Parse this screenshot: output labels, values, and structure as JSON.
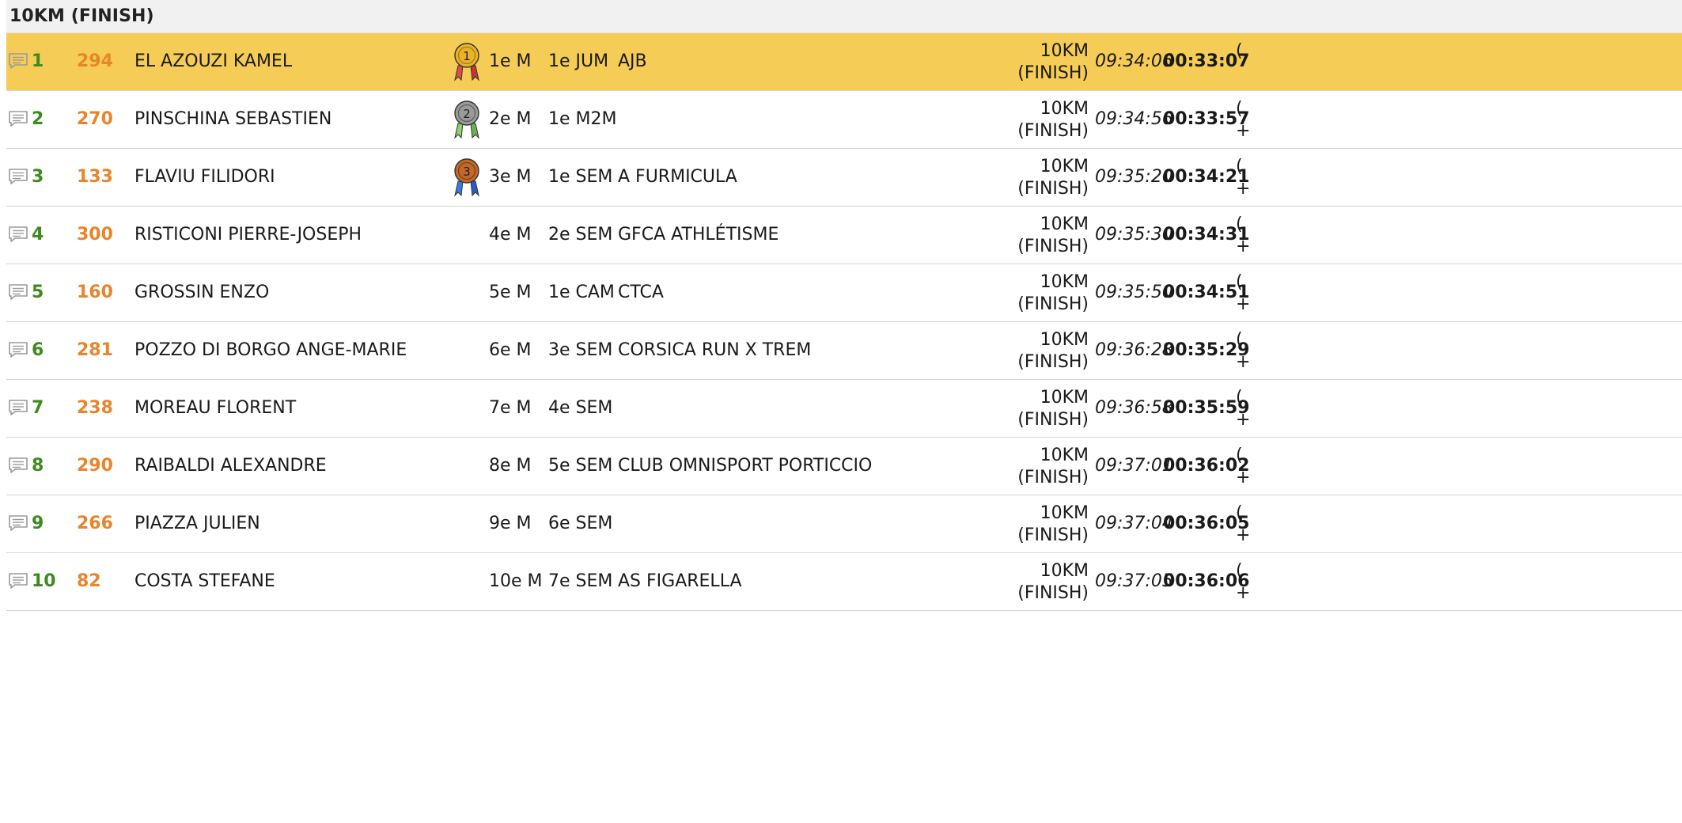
{
  "section": {
    "title": "10KM (FINISH)"
  },
  "colors": {
    "highlight_row": "#f5cc55",
    "rank": "#3d8a1e",
    "bib": "#e8852b",
    "medal_gold": "#e9b22a",
    "medal_silver": "#9a9a9a",
    "medal_bronze": "#c1692a"
  },
  "rows": [
    {
      "rank": "1",
      "bib": "294",
      "name": "EL AZOUZI KAMEL",
      "medal": "gold-medal-icon",
      "medal_num": "1",
      "overall": "1e M",
      "category": "1e JUM",
      "club": "AJB",
      "checkpoint_line1": "10KM",
      "checkpoint_line2": "(FINISH)",
      "time_of_day": "09:34:06",
      "chrono": "00:33:07",
      "gap_line1": "(",
      "gap_line2": ""
    },
    {
      "rank": "2",
      "bib": "270",
      "name": "PINSCHINA SEBASTIEN",
      "medal": "silver-medal-icon",
      "medal_num": "2",
      "overall": "2e M",
      "category": "1e M2M",
      "club": "",
      "checkpoint_line1": "10KM",
      "checkpoint_line2": "(FINISH)",
      "time_of_day": "09:34:56",
      "chrono": "00:33:57",
      "gap_line1": "(",
      "gap_line2": "+"
    },
    {
      "rank": "3",
      "bib": "133",
      "name": "FLAVIU FILIDORI",
      "medal": "bronze-medal-icon",
      "medal_num": "3",
      "overall": "3e M",
      "category": "1e SEM",
      "club": "A FURMICULA",
      "checkpoint_line1": "10KM",
      "checkpoint_line2": "(FINISH)",
      "time_of_day": "09:35:20",
      "chrono": "00:34:21",
      "gap_line1": "(",
      "gap_line2": "+"
    },
    {
      "rank": "4",
      "bib": "300",
      "name": "RISTICONI PIERRE-JOSEPH",
      "medal": "",
      "medal_num": "",
      "overall": "4e M",
      "category": "2e SEM",
      "club": "GFCA ATHLÉTISME",
      "checkpoint_line1": "10KM",
      "checkpoint_line2": "(FINISH)",
      "time_of_day": "09:35:30",
      "chrono": "00:34:31",
      "gap_line1": "(",
      "gap_line2": "+"
    },
    {
      "rank": "5",
      "bib": "160",
      "name": "GROSSIN ENZO",
      "medal": "",
      "medal_num": "",
      "overall": "5e M",
      "category": "1e CAM",
      "club": "CTCA",
      "checkpoint_line1": "10KM",
      "checkpoint_line2": "(FINISH)",
      "time_of_day": "09:35:50",
      "chrono": "00:34:51",
      "gap_line1": "(",
      "gap_line2": "+"
    },
    {
      "rank": "6",
      "bib": "281",
      "name": "POZZO DI BORGO ANGE-MARIE",
      "medal": "",
      "medal_num": "",
      "overall": "6e M",
      "category": "3e SEM",
      "club": "CORSICA RUN X TREM",
      "checkpoint_line1": "10KM",
      "checkpoint_line2": "(FINISH)",
      "time_of_day": "09:36:28",
      "chrono": "00:35:29",
      "gap_line1": "(",
      "gap_line2": "+"
    },
    {
      "rank": "7",
      "bib": "238",
      "name": "MOREAU FLORENT",
      "medal": "",
      "medal_num": "",
      "overall": "7e M",
      "category": "4e SEM",
      "club": "",
      "checkpoint_line1": "10KM",
      "checkpoint_line2": "(FINISH)",
      "time_of_day": "09:36:58",
      "chrono": "00:35:59",
      "gap_line1": "(",
      "gap_line2": "+"
    },
    {
      "rank": "8",
      "bib": "290",
      "name": "RAIBALDI ALEXANDRE",
      "medal": "",
      "medal_num": "",
      "overall": "8e M",
      "category": "5e SEM",
      "club": "CLUB OMNISPORT PORTICCIO",
      "checkpoint_line1": "10KM",
      "checkpoint_line2": "(FINISH)",
      "time_of_day": "09:37:01",
      "chrono": "00:36:02",
      "gap_line1": "(",
      "gap_line2": "+"
    },
    {
      "rank": "9",
      "bib": "266",
      "name": "PIAZZA JULIEN",
      "medal": "",
      "medal_num": "",
      "overall": "9e M",
      "category": "6e SEM",
      "club": "",
      "checkpoint_line1": "10KM",
      "checkpoint_line2": "(FINISH)",
      "time_of_day": "09:37:04",
      "chrono": "00:36:05",
      "gap_line1": "(",
      "gap_line2": "+"
    },
    {
      "rank": "10",
      "bib": "82",
      "name": "COSTA STEFANE",
      "medal": "",
      "medal_num": "",
      "overall": "10e M",
      "category": "7e SEM",
      "club": "AS FIGARELLA",
      "checkpoint_line1": "10KM",
      "checkpoint_line2": "(FINISH)",
      "time_of_day": "09:37:05",
      "chrono": "00:36:06",
      "gap_line1": "(",
      "gap_line2": "+"
    }
  ]
}
